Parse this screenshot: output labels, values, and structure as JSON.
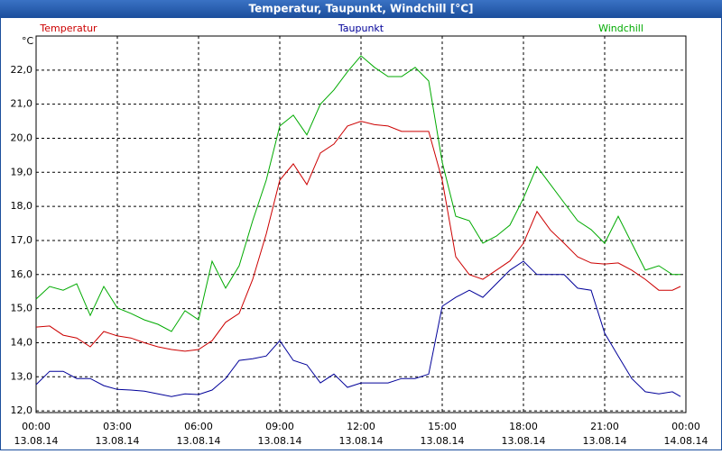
{
  "chart_data": {
    "type": "line",
    "title": "Temperatur, Taupunkt, Windchill [°C]",
    "y_unit": "°C",
    "x": [
      0,
      0.5,
      1,
      1.5,
      2,
      2.5,
      3,
      3.5,
      4,
      4.5,
      5,
      5.5,
      6,
      6.5,
      7,
      7.5,
      8,
      8.5,
      9,
      9.5,
      10,
      10.5,
      11,
      11.5,
      12,
      12.5,
      13,
      13.5,
      14,
      14.5,
      15,
      15.5,
      16,
      16.5,
      17,
      17.5,
      18,
      18.5,
      19,
      19.5,
      20,
      20.5,
      21,
      21.5,
      22,
      22.5,
      23,
      23.5,
      23.8
    ],
    "xlim": [
      0,
      24
    ],
    "xticks": [
      {
        "value": 0,
        "label": "00:00",
        "date": "13.08.14"
      },
      {
        "value": 3,
        "label": "03:00",
        "date": "13.08.14"
      },
      {
        "value": 6,
        "label": "06:00",
        "date": "13.08.14"
      },
      {
        "value": 9,
        "label": "09:00",
        "date": "13.08.14"
      },
      {
        "value": 12,
        "label": "12:00",
        "date": "13.08.14"
      },
      {
        "value": 15,
        "label": "15:00",
        "date": "13.08.14"
      },
      {
        "value": 18,
        "label": "18:00",
        "date": "13.08.14"
      },
      {
        "value": 21,
        "label": "21:00",
        "date": "13.08.14"
      },
      {
        "value": 24,
        "label": "00:00",
        "date": "14.08.14"
      }
    ],
    "ylim": [
      11.95,
      23.0
    ],
    "yticks": [
      {
        "value": 12,
        "label": "12,0"
      },
      {
        "value": 13,
        "label": "13,0"
      },
      {
        "value": 14,
        "label": "14,0"
      },
      {
        "value": 15,
        "label": "15,0"
      },
      {
        "value": 16,
        "label": "16,0"
      },
      {
        "value": 17,
        "label": "17,0"
      },
      {
        "value": 18,
        "label": "18,0"
      },
      {
        "value": 19,
        "label": "19,0"
      },
      {
        "value": 20,
        "label": "20,0"
      },
      {
        "value": 21,
        "label": "21,0"
      },
      {
        "value": 22,
        "label": "22,0"
      }
    ],
    "grid": true,
    "series": [
      {
        "name": "Temperatur",
        "color": "#cc0000",
        "values": [
          14.46,
          14.49,
          14.22,
          14.14,
          13.88,
          14.33,
          14.2,
          14.14,
          14.0,
          13.88,
          13.8,
          13.75,
          13.8,
          14.06,
          14.6,
          14.86,
          15.86,
          17.19,
          18.77,
          19.25,
          18.64,
          19.57,
          19.83,
          20.36,
          20.5,
          20.4,
          20.36,
          20.2,
          20.2,
          20.2,
          18.77,
          16.52,
          16.0,
          15.86,
          16.13,
          16.4,
          16.92,
          17.85,
          17.3,
          16.92,
          16.52,
          16.34,
          16.31,
          16.34,
          16.13,
          15.86,
          15.54,
          15.54,
          15.65
        ]
      },
      {
        "name": "Taupunkt",
        "color": "#000099",
        "values": [
          12.77,
          13.16,
          13.16,
          12.95,
          12.95,
          12.74,
          12.63,
          12.61,
          12.58,
          12.5,
          12.42,
          12.5,
          12.48,
          12.61,
          12.95,
          13.48,
          13.53,
          13.61,
          14.06,
          13.48,
          13.35,
          12.82,
          13.08,
          12.69,
          12.82,
          12.82,
          12.82,
          12.95,
          12.95,
          13.08,
          15.07,
          15.33,
          15.54,
          15.33,
          15.73,
          16.13,
          16.39,
          16.0,
          16.0,
          16.0,
          15.6,
          15.54,
          14.28,
          13.61,
          12.95,
          12.56,
          12.5,
          12.56,
          12.42
        ]
      },
      {
        "name": "Windchill",
        "color": "#00aa00",
        "values": [
          15.28,
          15.65,
          15.54,
          15.73,
          14.8,
          15.65,
          15.02,
          14.86,
          14.67,
          14.54,
          14.33,
          14.94,
          14.67,
          16.39,
          15.6,
          16.26,
          17.58,
          18.77,
          20.36,
          20.68,
          20.1,
          21.0,
          21.42,
          21.95,
          22.42,
          22.08,
          21.81,
          21.81,
          22.08,
          21.68,
          19.3,
          17.71,
          17.58,
          16.92,
          17.13,
          17.45,
          18.24,
          19.17,
          18.64,
          18.11,
          17.58,
          17.32,
          16.92,
          17.71,
          16.92,
          16.13,
          16.26,
          16.0,
          16.0
        ]
      }
    ]
  }
}
